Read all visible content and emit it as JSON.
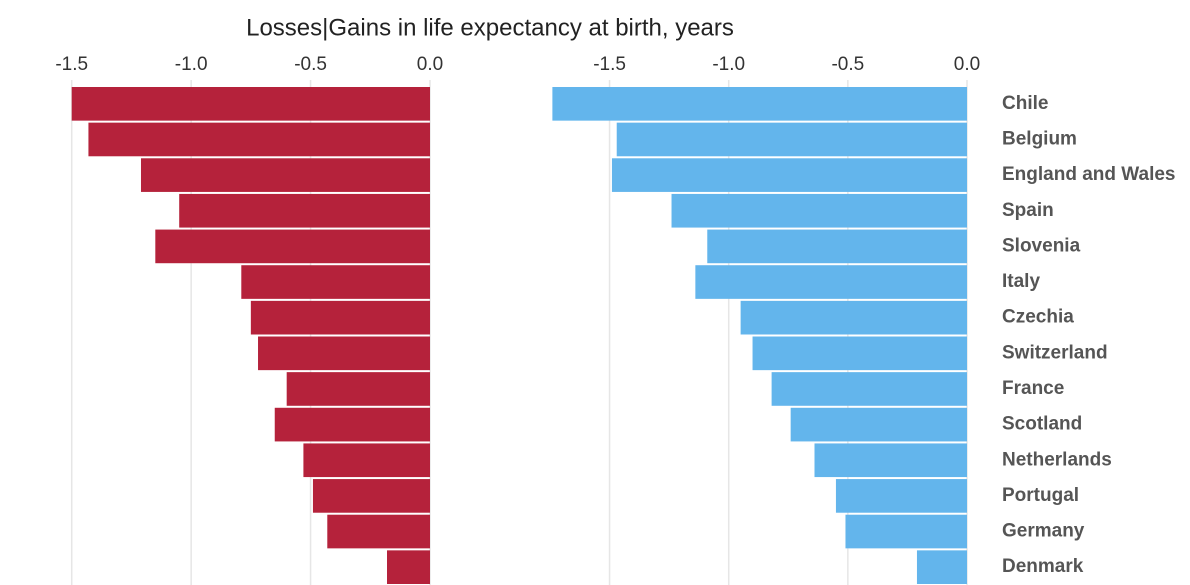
{
  "chart_data": {
    "type": "bar",
    "title": "Losses|Gains in life expectancy at birth, years",
    "categories": [
      "Chile",
      "Belgium",
      "England and Wales",
      "Spain",
      "Slovenia",
      "Italy",
      "Czechia",
      "Switzerland",
      "France",
      "Scotland",
      "Netherlands",
      "Portugal",
      "Germany",
      "Denmark"
    ],
    "series": [
      {
        "color": "#b5223b",
        "values": [
          -1.5,
          -1.43,
          -1.21,
          -1.05,
          -1.15,
          -0.79,
          -0.75,
          -0.72,
          -0.6,
          -0.65,
          -0.53,
          -0.49,
          -0.43,
          -0.18
        ]
      },
      {
        "color": "#63b5ec",
        "values": [
          -1.74,
          -1.47,
          -1.49,
          -1.24,
          -1.09,
          -1.14,
          -0.95,
          -0.9,
          -0.82,
          -0.74,
          -0.64,
          -0.55,
          -0.51,
          -0.21
        ]
      }
    ],
    "xlim": [
      -1.75,
      0
    ],
    "xticks": [
      -1.5,
      {
        "value": -1.0,
        "label": "-1.0"
      },
      -0.5,
      {
        "value": 0,
        "label": "0.0"
      }
    ],
    "grid": true
  }
}
